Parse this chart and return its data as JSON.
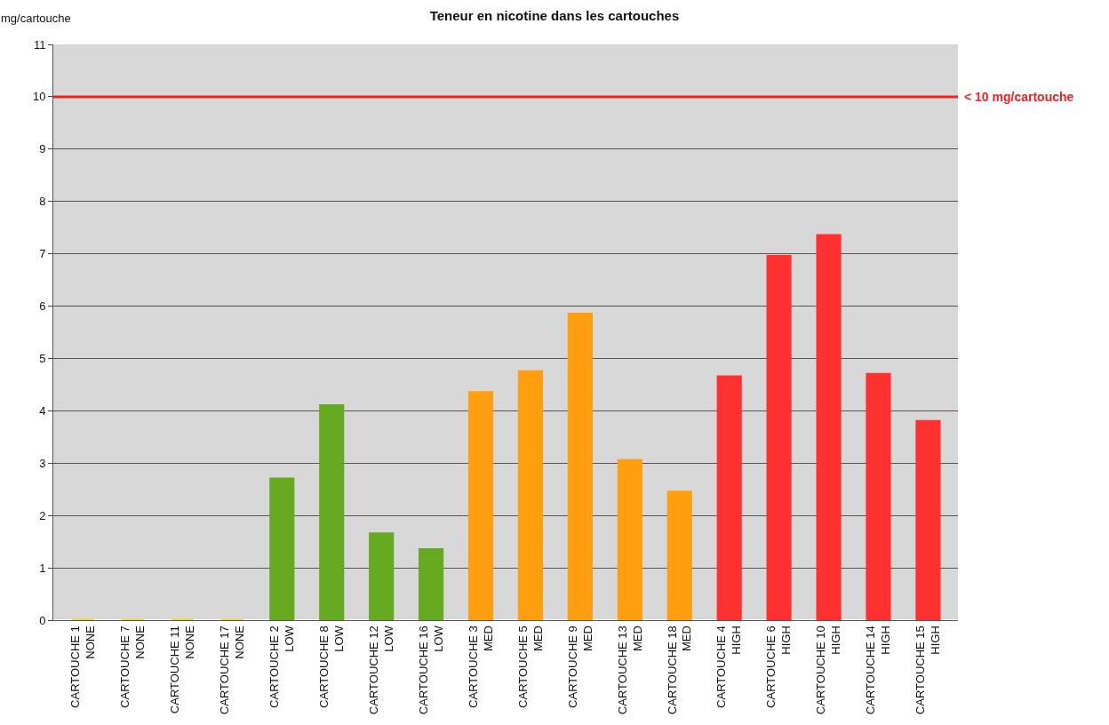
{
  "chart_data": {
    "type": "bar",
    "title": "Teneur en nicotine dans les cartouches",
    "ylabel": "mg/cartouche",
    "categories": [
      "CARTOUCHE 1\nNONE",
      "CARTOUCHE 7\nNONE",
      "CARTOUCHE 11\nNONE",
      "CARTOUCHE 17\nNONE",
      "CARTOUCHE 2\nLOW",
      "CARTOUCHE 8\nLOW",
      "CARTOUCHE 12\nLOW",
      "CARTOUCHE 16\nLOW",
      "CARTOUCHE 3\nMED",
      "CARTOUCHE 5\nMED",
      "CARTOUCHE 9\nMED",
      "CARTOUCHE 13\nMED",
      "CARTOUCHE 18\nMED",
      "CARTOUCHE 4\nHIGH",
      "CARTOUCHE 6\nHIGH",
      "CARTOUCHE 10\nHIGH",
      "CARTOUCHE 14\nHIGH",
      "CARTOUCHE 15\nHIGH"
    ],
    "values": [
      0,
      0,
      0,
      0,
      2.7,
      4.1,
      1.65,
      1.35,
      4.35,
      4.75,
      5.85,
      3.05,
      2.45,
      4.65,
      6.95,
      7.35,
      4.7,
      3.8
    ],
    "colors": [
      "#e8dc30",
      "#e8dc30",
      "#e8dc30",
      "#e8dc30",
      "#66aa22",
      "#66aa22",
      "#66aa22",
      "#66aa22",
      "#ff9f10",
      "#ff9f10",
      "#ff9f10",
      "#ff9f10",
      "#ff9f10",
      "#ff3030",
      "#ff3030",
      "#ff3030",
      "#ff3030",
      "#ff3030"
    ],
    "ylim": [
      0,
      11
    ],
    "yticks": [
      0,
      1,
      2,
      3,
      4,
      5,
      6,
      7,
      8,
      9,
      10,
      11
    ],
    "grid": "y",
    "ref_lines": [
      {
        "axis": "y",
        "value": 10,
        "label": "< 10 mg/cartouche",
        "color": "#ee2222"
      }
    ]
  }
}
